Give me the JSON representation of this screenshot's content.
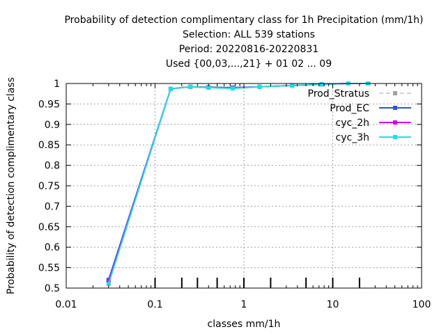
{
  "chart_data": {
    "type": "line",
    "title_lines": [
      "Probability of detection complimentary class  for 1h Precipitation (mm/1h)",
      "Selection: ALL    539 stations",
      "Period: 20220816-20220831",
      "Used {00,03,...,21} + 01 02 ... 09"
    ],
    "xlabel": "classes mm/1h",
    "ylabel": "Probability of detection complimentary class",
    "x_scale": "log",
    "xlim": [
      0.01,
      100
    ],
    "ylim": [
      0.5,
      1.0
    ],
    "x_ticks": [
      0.01,
      0.1,
      1,
      10,
      100
    ],
    "x_tick_labels": [
      "0.01",
      "0.1",
      "1",
      "10",
      "100"
    ],
    "y_ticks": [
      0.5,
      0.55,
      0.6,
      0.65,
      0.7,
      0.75,
      0.8,
      0.85,
      0.9,
      0.95,
      1.0
    ],
    "y_tick_labels": [
      "0.5",
      "0.55",
      "0.6",
      "0.65",
      "0.7",
      "0.75",
      "0.8",
      "0.85",
      "0.9",
      "0.95",
      "1"
    ],
    "grid": true,
    "legend_position": "top-right",
    "class_marks": [
      0.1,
      0.2,
      0.3,
      0.5,
      1,
      2,
      5,
      10,
      20
    ],
    "series": [
      {
        "name": "Prod_Stratus",
        "color": "#a0a0a0",
        "dashed": true,
        "x": [],
        "y": []
      },
      {
        "name": "Prod_EC",
        "color": "#3355cc",
        "dashed": false,
        "x": [
          0.03,
          0.15,
          0.25,
          0.4,
          0.75,
          1.5,
          3.5,
          7.5,
          15,
          25
        ],
        "y": [
          0.52,
          0.987,
          0.992,
          0.991,
          0.99,
          0.992,
          0.995,
          0.998,
          1.0,
          1.0
        ]
      },
      {
        "name": "cyc_2h",
        "color": "#cc00ee",
        "dashed": false,
        "x": [
          0.03,
          0.15,
          0.25,
          0.4,
          0.75,
          1.5,
          3.5,
          7.5,
          15,
          25
        ],
        "y": [
          0.515,
          0.987,
          0.992,
          0.99,
          0.989,
          0.992,
          0.995,
          0.998,
          1.0,
          1.0
        ]
      },
      {
        "name": "cyc_3h",
        "color": "#22dddd",
        "dashed": false,
        "x": [
          0.03,
          0.15,
          0.25,
          0.4,
          0.75,
          1.5,
          3.5,
          7.5,
          15,
          25
        ],
        "y": [
          0.51,
          0.987,
          0.992,
          0.99,
          0.988,
          0.992,
          0.995,
          0.998,
          1.0,
          1.0
        ]
      }
    ]
  }
}
